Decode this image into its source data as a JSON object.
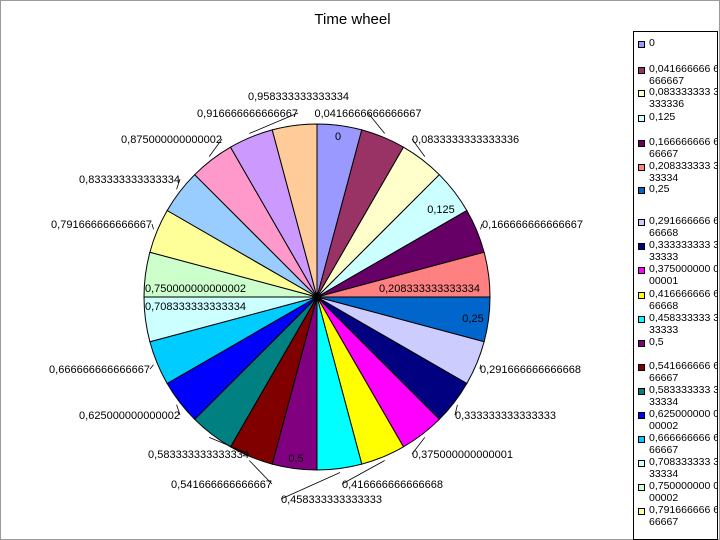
{
  "chart_data": {
    "type": "pie",
    "title": "Time wheel",
    "categories": [
      "0",
      "0,0416666666666667",
      "0,0833333333333336",
      "0,125",
      "0,166666666666667",
      "0,208333333333334",
      "0,25",
      "0,291666666666668",
      "0,333333333333333",
      "0,375000000000001",
      "0,416666666666668",
      "0,458333333333333",
      "0,5",
      "0,541666666666667",
      "0,583333333333334",
      "0,625000000000002",
      "0,666666666666667",
      "0,708333333333334",
      "0,750000000000002",
      "0,791666666666667",
      "0,833333333333334",
      "0,875000000000002",
      "0,916666666666667",
      "0,958333333333334"
    ],
    "values": [
      1,
      1,
      1,
      1,
      1,
      1,
      1,
      1,
      1,
      1,
      1,
      1,
      1,
      1,
      1,
      1,
      1,
      1,
      1,
      1,
      1,
      1,
      1,
      1
    ],
    "colors": [
      "#9999ff",
      "#993366",
      "#ffffcc",
      "#ccffff",
      "#660066",
      "#ff8080",
      "#0066cc",
      "#ccccff",
      "#000080",
      "#ff00ff",
      "#ffff00",
      "#00ffff",
      "#800080",
      "#800000",
      "#008080",
      "#0000ff",
      "#00ccff",
      "#ccffff",
      "#ccffcc",
      "#ffff99",
      "#99ccff",
      "#ff99cc",
      "#cc99ff",
      "#ffcc99"
    ],
    "legend": {
      "position": "right",
      "entries": [
        "0",
        "0,041666666 6666667",
        "0,083333333 3333336",
        "0,125",
        "0,166666666 666667",
        "0,208333333 333334",
        "0,25",
        "0,291666666 666668",
        "0,333333333 333333",
        "0,375000000 000001",
        "0,416666666 666668",
        "0,458333333 333333",
        "0,5",
        "0,541666666 666667",
        "0,583333333 333334",
        "0,625000000 000002",
        "0,666666666 666667",
        "0,708333333 333334",
        "0,750000000 000002",
        "0,791666666 666667"
      ]
    }
  }
}
